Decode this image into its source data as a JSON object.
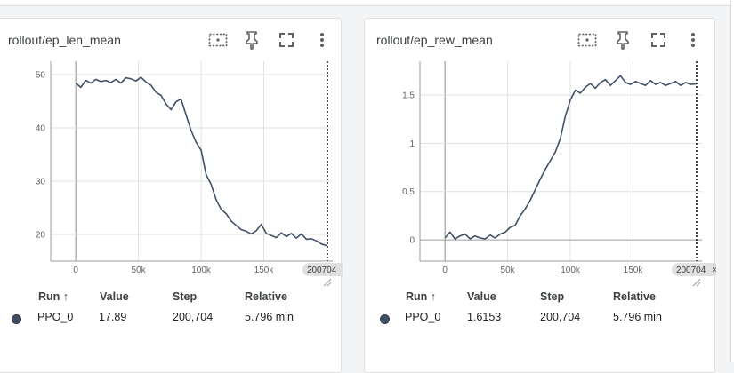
{
  "colors": {
    "series": "#425066",
    "grid": "#e0e0e0",
    "axis": "#9e9e9e"
  },
  "icons": [
    "fit-domain-icon",
    "pin-icon",
    "fullscreen-icon",
    "more-vert-icon"
  ],
  "cards": [
    {
      "title": "rollout/ep_len_mean",
      "step_chip": "200704",
      "table": {
        "headers": {
          "run": "Run",
          "value": "Value",
          "step": "Step",
          "relative": "Relative"
        },
        "sort_arrow": "↑",
        "row": {
          "run": "PPO_0",
          "value": "17.89",
          "step": "200,704",
          "relative": "5.796 min"
        }
      }
    },
    {
      "title": "rollout/ep_rew_mean",
      "step_chip": "200704",
      "table": {
        "headers": {
          "run": "Run",
          "value": "Value",
          "step": "Step",
          "relative": "Relative"
        },
        "sort_arrow": "↑",
        "row": {
          "run": "PPO_0",
          "value": "1.6153",
          "step": "200,704",
          "relative": "5.796 min"
        }
      }
    }
  ],
  "chart_data": [
    {
      "type": "line",
      "title": "rollout/ep_len_mean",
      "xlim": [
        -20000,
        205000
      ],
      "ylim": [
        15,
        52.5
      ],
      "xticks": [
        0,
        50000,
        100000,
        150000
      ],
      "xtick_labels": [
        "0",
        "50k",
        "100k",
        "150k"
      ],
      "yticks": [
        20,
        30,
        40,
        50
      ],
      "ytick_labels": [
        "20",
        "30",
        "40",
        "50"
      ],
      "grid": true,
      "cursor_step": 200704,
      "series": [
        {
          "x": [
            0,
            4000,
            8000,
            12000,
            16000,
            20000,
            24000,
            28000,
            32000,
            36000,
            40000,
            44000,
            48000,
            52000,
            56000,
            60000,
            64000,
            68000,
            72000,
            76000,
            80000,
            84000,
            88000,
            92000,
            96000,
            100000,
            104000,
            108000,
            112000,
            116000,
            120000,
            124000,
            128000,
            132000,
            136000,
            140000,
            144000,
            148000,
            152000,
            156000,
            160000,
            164000,
            168000,
            172000,
            176000,
            180000,
            184000,
            188000,
            192000,
            196000,
            200704
          ],
          "y": [
            48.4,
            47.6,
            48.9,
            48.4,
            49.1,
            48.7,
            48.9,
            48.5,
            49.1,
            48.4,
            49.4,
            49.2,
            48.8,
            49.5,
            48.6,
            48.0,
            46.7,
            46.1,
            44.5,
            43.4,
            44.9,
            45.4,
            42.4,
            39.5,
            37.3,
            35.8,
            31.2,
            29.4,
            26.5,
            24.7,
            23.9,
            22.5,
            21.7,
            20.9,
            20.6,
            20.1,
            20.7,
            21.9,
            20.2,
            19.8,
            19.4,
            20.3,
            19.6,
            20.2,
            19.3,
            20.1,
            19.1,
            19.2,
            18.8,
            18.2,
            17.89
          ]
        }
      ]
    },
    {
      "type": "line",
      "title": "rollout/ep_rew_mean",
      "xlim": [
        -20000,
        205000
      ],
      "ylim": [
        -0.22,
        1.85
      ],
      "xticks": [
        0,
        50000,
        100000,
        150000
      ],
      "xtick_labels": [
        "0",
        "50k",
        "100k",
        "150k"
      ],
      "yticks": [
        0,
        0.5,
        1,
        1.5
      ],
      "ytick_labels": [
        "0",
        "0.5",
        "1",
        "1.5"
      ],
      "grid": true,
      "cursor_step": 200704,
      "series": [
        {
          "x": [
            0,
            4000,
            8000,
            12000,
            16000,
            20000,
            24000,
            28000,
            32000,
            36000,
            40000,
            44000,
            48000,
            52000,
            56000,
            60000,
            64000,
            68000,
            72000,
            76000,
            80000,
            84000,
            88000,
            92000,
            96000,
            100000,
            104000,
            108000,
            112000,
            116000,
            120000,
            124000,
            128000,
            132000,
            136000,
            140000,
            144000,
            148000,
            152000,
            156000,
            160000,
            164000,
            168000,
            172000,
            176000,
            180000,
            184000,
            188000,
            192000,
            196000,
            200704
          ],
          "y": [
            0.02,
            0.08,
            0.01,
            0.04,
            0.06,
            0.01,
            0.04,
            0.02,
            0.01,
            0.05,
            0.02,
            0.06,
            0.08,
            0.13,
            0.15,
            0.25,
            0.32,
            0.41,
            0.52,
            0.63,
            0.73,
            0.82,
            0.91,
            1.05,
            1.28,
            1.45,
            1.55,
            1.52,
            1.58,
            1.62,
            1.57,
            1.63,
            1.66,
            1.6,
            1.65,
            1.7,
            1.63,
            1.61,
            1.64,
            1.62,
            1.6,
            1.65,
            1.61,
            1.63,
            1.6,
            1.62,
            1.64,
            1.6,
            1.63,
            1.61,
            1.6153
          ]
        }
      ]
    }
  ]
}
